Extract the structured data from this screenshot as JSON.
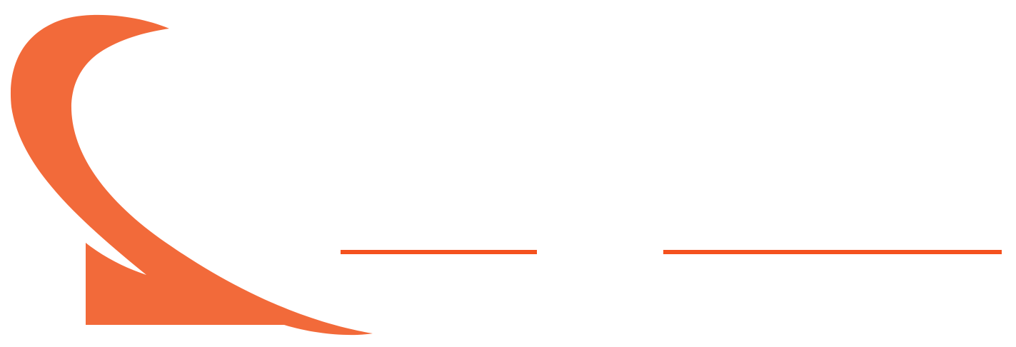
{
  "logo": {
    "icon": "swoosh-arrow-icon",
    "color": "#F26A3A"
  },
  "divider": {
    "color": "#F4511E",
    "segments": [
      "left-rule",
      "right-rule"
    ]
  }
}
